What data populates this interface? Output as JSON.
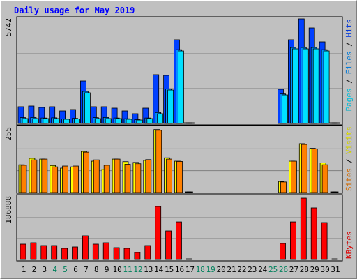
{
  "chart_data": {
    "type": "bar",
    "title": "Daily usage for May 2019",
    "categories": [
      "1",
      "2",
      "3",
      "4",
      "5",
      "6",
      "7",
      "8",
      "9",
      "10",
      "11",
      "12",
      "13",
      "14",
      "15",
      "16",
      "17",
      "18",
      "19",
      "20",
      "21",
      "22",
      "23",
      "24",
      "25",
      "26",
      "27",
      "28",
      "29",
      "30",
      "31"
    ],
    "category_colors": [
      "#000000",
      "#000000",
      "#000000",
      "#00805c",
      "#00805c",
      "#000000",
      "#000000",
      "#000000",
      "#000000",
      "#000000",
      "#00805c",
      "#00805c",
      "#000000",
      "#000000",
      "#000000",
      "#000000",
      "#000000",
      "#00805c",
      "#00805c",
      "#000000",
      "#000000",
      "#000000",
      "#000000",
      "#000000",
      "#00805c",
      "#00805c",
      "#000000",
      "#000000",
      "#000000",
      "#000000",
      "#000000"
    ],
    "panels": [
      {
        "ylim": [
          0,
          5742
        ],
        "series": [
          {
            "name": "Hits",
            "color": "#0040ff",
            "values": [
              919,
              957,
              880,
              919,
              689,
              766,
              2335,
              919,
              919,
              842,
              689,
              536,
              842,
              2680,
              2641,
              4594,
              0,
              null,
              null,
              null,
              null,
              null,
              null,
              null,
              null,
              1876,
              4594,
              5742,
              5244,
              4479,
              0
            ]
          },
          {
            "name": "Files",
            "color": "#0090ff",
            "values": [
              320,
              330,
              300,
              310,
              250,
              280,
              1760,
              320,
              330,
              300,
              260,
              210,
              300,
              600,
              1900,
              4050,
              0,
              null,
              null,
              null,
              null,
              null,
              null,
              null,
              null,
              1620,
              4170,
              4170,
              4170,
              4050,
              0
            ]
          },
          {
            "name": "Pages",
            "color": "#00e0ff",
            "values": [
              268,
              268,
              268,
              268,
              230,
              250,
              1684,
              268,
              268,
              268,
              230,
              190,
              268,
              536,
              1837,
              3981,
              0,
              null,
              null,
              null,
              null,
              null,
              null,
              null,
              null,
              1569,
              4096,
              4096,
              4096,
              3981,
              0
            ]
          }
        ]
      },
      {
        "ylim": [
          0,
          255
        ],
        "series": [
          {
            "name": "Visits",
            "color": "#ffff00",
            "values": [
              108,
              133,
              130,
              105,
              95,
              100,
              160,
              122,
              90,
              130,
              120,
              117,
              125,
              245,
              135,
              122,
              0,
              null,
              null,
              null,
              null,
              null,
              null,
              null,
              null,
              43,
              122,
              190,
              172,
              115,
              0
            ]
          },
          {
            "name": "Sites",
            "color": "#ff8000",
            "values": [
              106,
              127,
              130,
              100,
              103,
              103,
              157,
              127,
              106,
              130,
              110,
              112,
              128,
              242,
              130,
              121,
              0,
              null,
              null,
              null,
              null,
              null,
              null,
              null,
              null,
              41,
              122,
              187,
              170,
              108,
              0
            ]
          }
        ]
      },
      {
        "ylim": [
          0,
          186888
        ],
        "series": [
          {
            "name": "KBytes",
            "color": "#ff0000",
            "values": [
              45700,
              49800,
              41500,
              41500,
              33200,
              37400,
              70600,
              45700,
              49800,
              35300,
              33200,
              20800,
              41500,
              157800,
              85100,
              112000,
              0,
              null,
              null,
              null,
              null,
              null,
              null,
              null,
              null,
              47800,
              112000,
              182700,
              153700,
              110000,
              0
            ]
          }
        ]
      }
    ]
  }
}
